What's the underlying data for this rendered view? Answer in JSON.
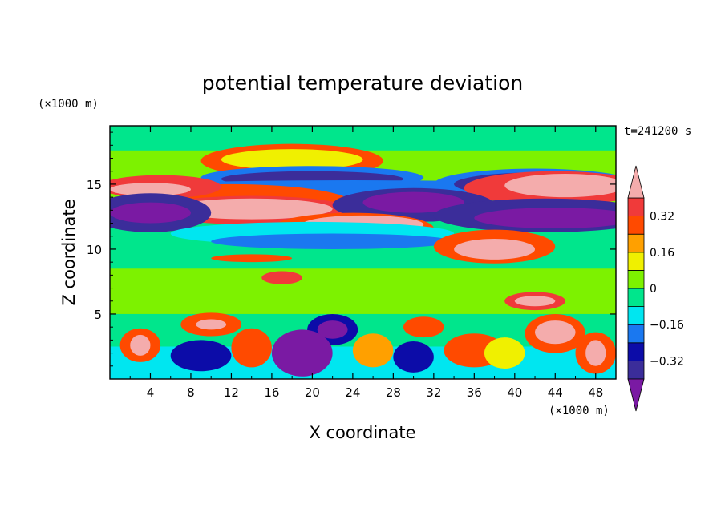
{
  "chart_data": {
    "type": "heatmap",
    "title": "potential temperature deviation",
    "xlabel": "X coordinate",
    "ylabel": "Z coordinate",
    "x_unit": "(×1000 m)",
    "y_unit": "(×1000 m)",
    "time_label": "t=241200 s",
    "xlim": [
      0,
      50
    ],
    "ylim": [
      0,
      19.5
    ],
    "x_ticks": [
      "4",
      "8",
      "12",
      "16",
      "20",
      "24",
      "28",
      "32",
      "36",
      "40",
      "44",
      "48"
    ],
    "y_ticks": [
      "5",
      "10",
      "15"
    ],
    "colorbar": {
      "levels": [
        -0.4,
        -0.32,
        -0.24,
        -0.16,
        -0.08,
        0,
        0.08,
        0.16,
        0.24,
        0.32,
        0.4
      ],
      "labels": [
        "0.32",
        "0.16",
        "0",
        "−0.16",
        "−0.32"
      ],
      "colors": [
        "#7a1aa3",
        "#3b2d9a",
        "#0c0ca8",
        "#1a78f0",
        "#00e6f0",
        "#00e68c",
        "#7df200",
        "#f0f000",
        "#ffa000",
        "#ff4a00",
        "#f03a3a",
        "#f4acac"
      ]
    }
  }
}
